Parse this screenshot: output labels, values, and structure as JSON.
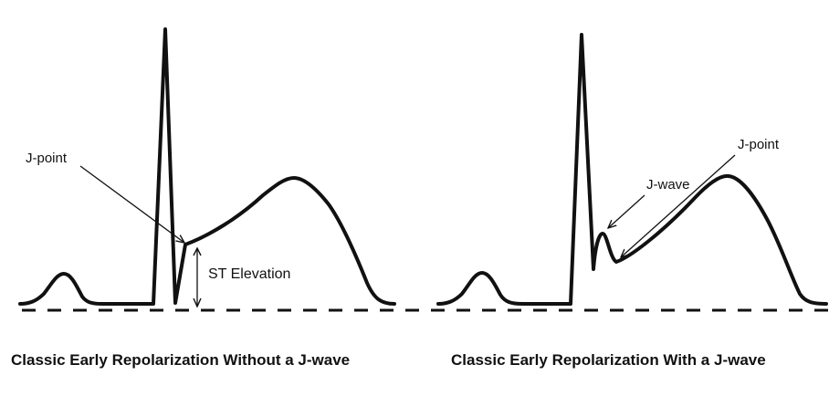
{
  "colors": {
    "trace": "#111111",
    "baseline": "#111111",
    "background": "#ffffff"
  },
  "panels": [
    {
      "caption": "Classic Early Repolarization Without a J-wave",
      "labels": {
        "j_point": "J-point",
        "st_elevation": "ST Elevation"
      }
    },
    {
      "caption": "Classic Early Repolarization With a J-wave",
      "labels": {
        "j_point": "J-point",
        "j_wave": "J-wave"
      }
    }
  ]
}
